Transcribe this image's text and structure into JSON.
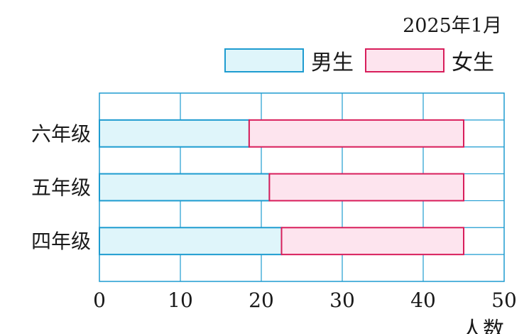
{
  "chart_data": {
    "type": "bar",
    "orientation": "horizontal",
    "stacked": true,
    "subtitle": "2025年1月",
    "categories": [
      "四年级",
      "五年级",
      "六年级"
    ],
    "series": [
      {
        "name": "男生",
        "values": [
          22.5,
          21,
          18.5
        ],
        "color": "#dff5fa",
        "stroke": "#1e9cd0"
      },
      {
        "name": "女生",
        "values": [
          22.5,
          24,
          26.5
        ],
        "color": "#fde4ee",
        "stroke": "#d81e5b"
      }
    ],
    "xlabel": "人数",
    "xlim": [
      0,
      50
    ],
    "xticks": [
      0,
      10,
      20,
      30,
      40,
      50
    ],
    "grid": true,
    "legend": "top-right"
  }
}
